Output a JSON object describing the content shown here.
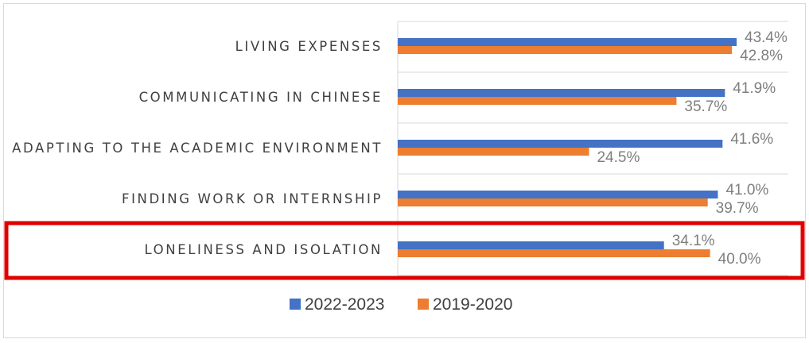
{
  "chart_data": {
    "type": "bar",
    "orientation": "horizontal",
    "categories": [
      "LIVING EXPENSES",
      "COMMUNICATING IN CHINESE",
      "ADAPTING TO THE ACADEMIC ENVIRONMENT",
      "FINDING WORK OR INTERNSHIP",
      "LONELINESS AND ISOLATION"
    ],
    "series": [
      {
        "name": "2022-2023",
        "color": "#4472c4",
        "values": [
          43.4,
          41.9,
          41.6,
          41.0,
          34.1
        ],
        "labels": [
          "43.4%",
          "41.9%",
          "41.6%",
          "41.0%",
          "34.1%"
        ]
      },
      {
        "name": "2019-2020",
        "color": "#ed7d31",
        "values": [
          42.8,
          35.7,
          24.5,
          39.7,
          40.0
        ],
        "labels": [
          "42.8%",
          "35.7%",
          "24.5%",
          "39.7%",
          "40.0%"
        ]
      }
    ],
    "xlim": [
      0,
      43.4
    ],
    "grid": "horizontal lines between categories",
    "legend_position": "bottom",
    "highlight": {
      "category": "LONELINESS AND ISOLATION",
      "color": "#e00000"
    }
  }
}
